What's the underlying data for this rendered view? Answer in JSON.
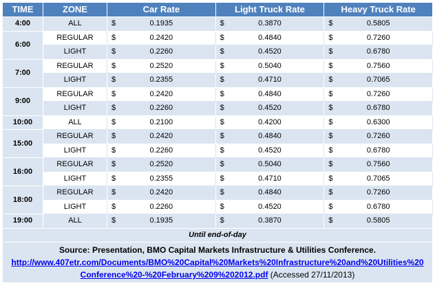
{
  "headers": {
    "time": "TIME",
    "zone": "ZONE",
    "car": "Car Rate",
    "light": "Light Truck Rate",
    "heavy": "Heavy Truck Rate"
  },
  "currency": "$",
  "rows": [
    {
      "time": "4:00",
      "zone": "ALL",
      "car": "0.1935",
      "light": "0.3870",
      "heavy": "0.5805"
    },
    {
      "time": "6:00",
      "zone": "REGULAR",
      "car": "0.2420",
      "light": "0.4840",
      "heavy": "0.7260"
    },
    {
      "time": "",
      "zone": "LIGHT",
      "car": "0.2260",
      "light": "0.4520",
      "heavy": "0.6780"
    },
    {
      "time": "7:00",
      "zone": "REGULAR",
      "car": "0.2520",
      "light": "0.5040",
      "heavy": "0.7560"
    },
    {
      "time": "",
      "zone": "LIGHT",
      "car": "0.2355",
      "light": "0.4710",
      "heavy": "0.7065"
    },
    {
      "time": "9:00",
      "zone": "REGULAR",
      "car": "0.2420",
      "light": "0.4840",
      "heavy": "0.7260"
    },
    {
      "time": "",
      "zone": "LIGHT",
      "car": "0.2260",
      "light": "0.4520",
      "heavy": "0.6780"
    },
    {
      "time": "10:00",
      "zone": "ALL",
      "car": "0.2100",
      "light": "0.4200",
      "heavy": "0.6300"
    },
    {
      "time": "15:00",
      "zone": "REGULAR",
      "car": "0.2420",
      "light": "0.4840",
      "heavy": "0.7260"
    },
    {
      "time": "",
      "zone": "LIGHT",
      "car": "0.2260",
      "light": "0.4520",
      "heavy": "0.6780"
    },
    {
      "time": "16:00",
      "zone": "REGULAR",
      "car": "0.2520",
      "light": "0.5040",
      "heavy": "0.7560"
    },
    {
      "time": "",
      "zone": "LIGHT",
      "car": "0.2355",
      "light": "0.4710",
      "heavy": "0.7065"
    },
    {
      "time": "18:00",
      "zone": "REGULAR",
      "car": "0.2420",
      "light": "0.4840",
      "heavy": "0.7260"
    },
    {
      "time": "",
      "zone": "LIGHT",
      "car": "0.2260",
      "light": "0.4520",
      "heavy": "0.6780"
    },
    {
      "time": "19:00",
      "zone": "ALL",
      "car": "0.1935",
      "light": "0.3870",
      "heavy": "0.5805"
    }
  ],
  "until": "Until end-of-day",
  "source": {
    "line1": "Source: Presentation, BMO Capital Markets Infrastructure & Utilities Conference.",
    "link_part1": "http://www.407etr.com/Documents/BMO%20Capital%20Markets%20Infrastructure%20and%20Utilities%20",
    "link_part2": "Conference%20-%20February%209%202012.pdf",
    "accessed": " (Accessed 27/11/2013)"
  },
  "colors": {
    "header": "#4f81bd",
    "band": "#dbe5f1",
    "link": "#0000ee"
  }
}
